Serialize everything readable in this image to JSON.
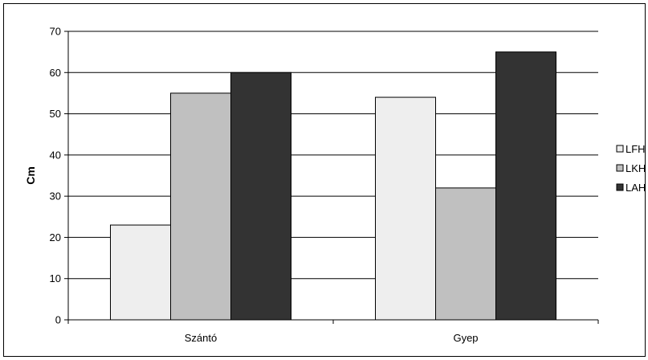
{
  "chart_data": {
    "type": "bar",
    "categories": [
      "Szántó",
      "Gyep"
    ],
    "series": [
      {
        "name": "LFH",
        "values": [
          23,
          54
        ],
        "color": "#eeeeee"
      },
      {
        "name": "LKH",
        "values": [
          55,
          32
        ],
        "color": "#c0c0c0"
      },
      {
        "name": "LAH",
        "values": [
          60,
          65
        ],
        "color": "#333333"
      }
    ],
    "xlabel": "",
    "ylabel": "Cm",
    "ylim": [
      0,
      70
    ],
    "yticks": [
      0,
      10,
      20,
      30,
      40,
      50,
      60,
      70
    ],
    "grid": true,
    "legend_position": "right"
  }
}
